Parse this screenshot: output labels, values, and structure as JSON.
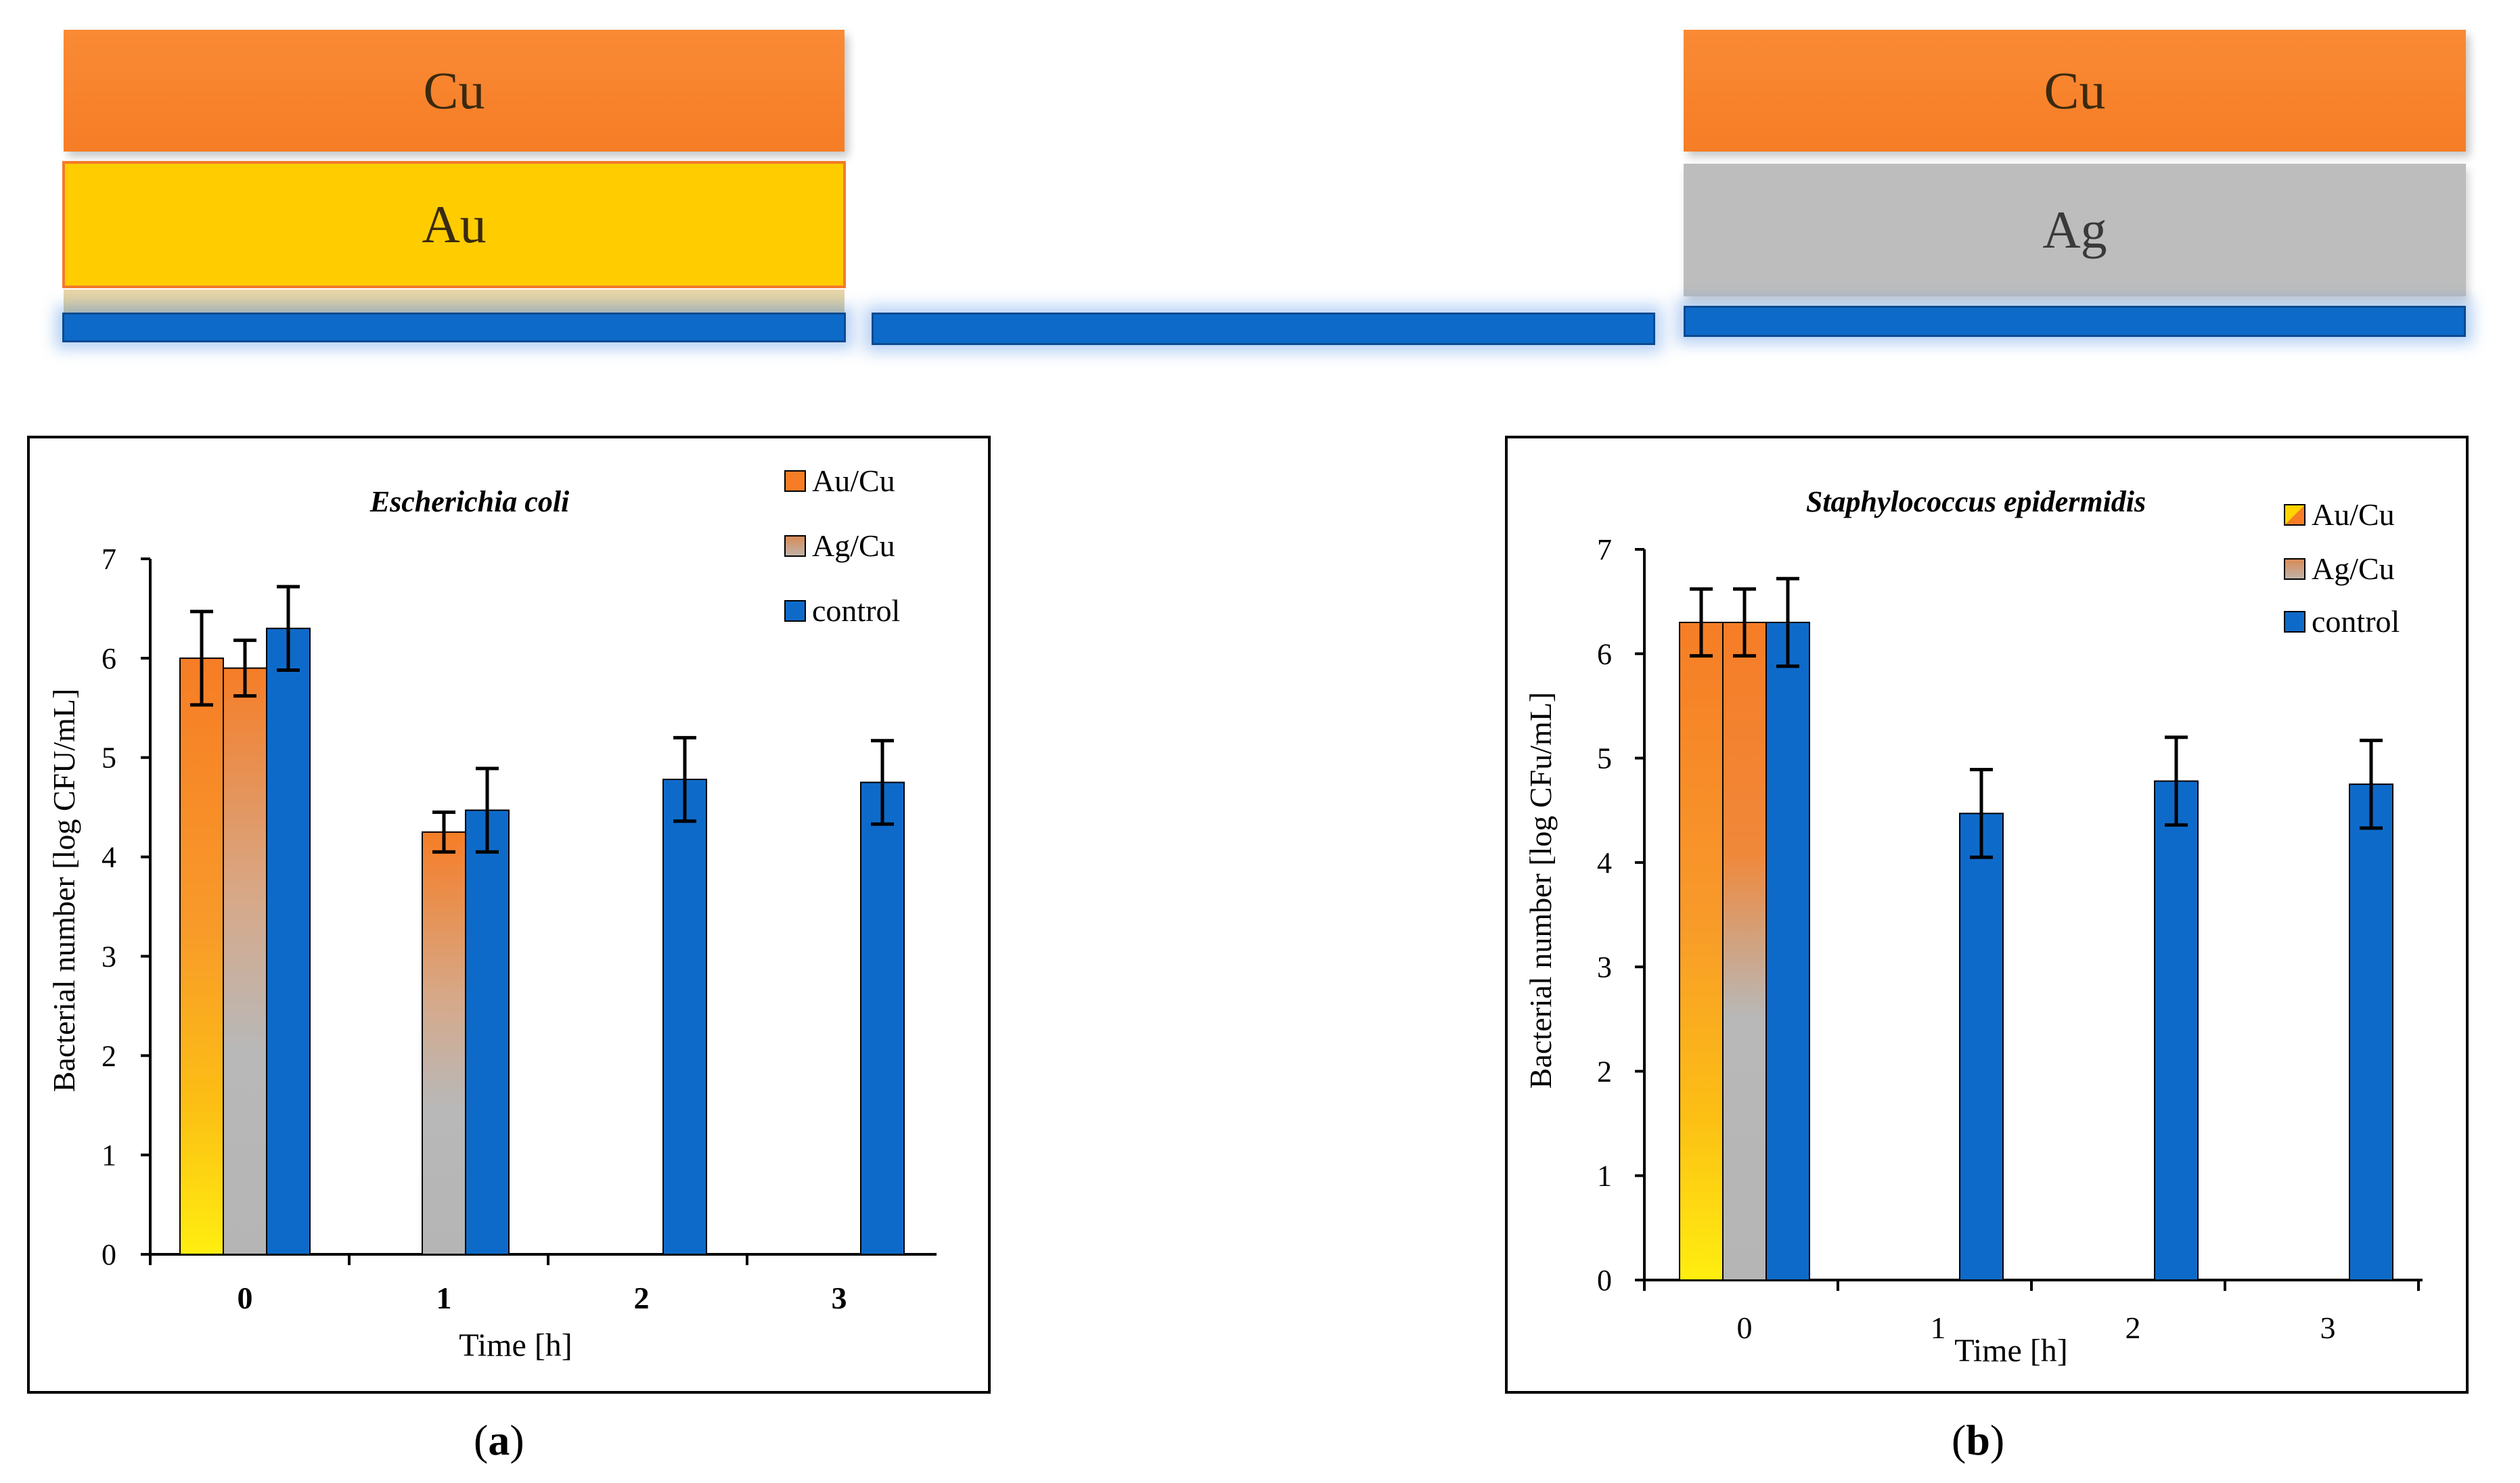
{
  "schematic": {
    "left": {
      "top_layer": "Cu",
      "mid_layer": "Au"
    },
    "right": {
      "top_layer": "Cu",
      "mid_layer": "Ag"
    }
  },
  "labels": {
    "a_prefix": "(",
    "a_letter": "a",
    "a_suffix": ")",
    "b_prefix": "(",
    "b_letter": "b",
    "b_suffix": ")"
  },
  "colors": {
    "control": "#0e6ac9",
    "cu": "#f67d26",
    "au": "#ffd400",
    "ag": "#b8b8b8",
    "axis": "#000000"
  },
  "chart_data": [
    {
      "id": "a",
      "type": "bar",
      "title": "Escherichia coli",
      "xlabel": "Time [h]",
      "ylabel": "Bacterial number [log CFU/mL]",
      "categories": [
        "0",
        "1",
        "2",
        "3"
      ],
      "categories_bold": true,
      "ylim": [
        0,
        7
      ],
      "yticks": [
        "0",
        "1",
        "2",
        "3",
        "4",
        "5",
        "6",
        "7"
      ],
      "legend_position": "top-right",
      "series": [
        {
          "name": "Au/Cu",
          "values": [
            6.0,
            0,
            0,
            0
          ],
          "errors": [
            0.47,
            0,
            0,
            0
          ],
          "fill": "au-cu"
        },
        {
          "name": "Ag/Cu",
          "values": [
            5.9,
            4.25,
            0,
            0
          ],
          "errors": [
            0.28,
            0.2,
            0,
            0
          ],
          "fill": "ag-cu"
        },
        {
          "name": "control",
          "values": [
            6.3,
            4.47,
            4.78,
            4.75
          ],
          "errors": [
            0.42,
            0.42,
            0.42,
            0.42
          ],
          "fill": "control"
        }
      ]
    },
    {
      "id": "b",
      "type": "bar",
      "title": "Staphylococcus epidermidis",
      "xlabel": "Time [h]",
      "ylabel": "Bacterial number [log CFu/mL]",
      "categories": [
        "0",
        "1",
        "2",
        "3"
      ],
      "categories_bold": false,
      "ylim": [
        0,
        7
      ],
      "yticks": [
        "0",
        "1",
        "2",
        "3",
        "4",
        "5",
        "6",
        "7"
      ],
      "legend_position": "top-right",
      "series": [
        {
          "name": "Au/Cu",
          "values": [
            6.3,
            0,
            0,
            0
          ],
          "errors": [
            0.32,
            0,
            0,
            0
          ],
          "fill": "au-cu"
        },
        {
          "name": "Ag/Cu",
          "values": [
            6.3,
            0,
            0,
            0
          ],
          "errors": [
            0.32,
            0,
            0,
            0
          ],
          "fill": "ag-cu"
        },
        {
          "name": "control",
          "values": [
            6.3,
            4.47,
            4.78,
            4.75
          ],
          "errors": [
            0.42,
            0.42,
            0.42,
            0.42
          ],
          "fill": "control"
        }
      ]
    }
  ]
}
